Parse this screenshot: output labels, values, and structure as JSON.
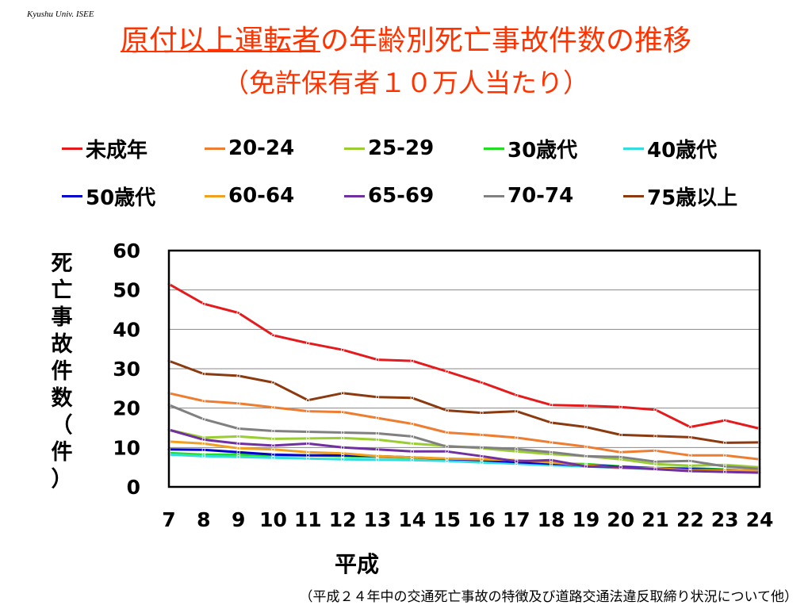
{
  "credit": "Kyushu Univ. ISEE",
  "title": {
    "part1": "原付以上運転者",
    "part2": "の年齢別死亡事故件数の推移",
    "line2": "（免許保有者１０万人当たり）"
  },
  "source": "（平成２４年中の交通死亡事故の特徴及び道路交通法違反取締り状況について他）",
  "colors": {
    "title": "#ff3300",
    "grid": "#888888"
  },
  "chart_data": {
    "type": "line",
    "xlabel": "平成",
    "ylabel": "死亡事故件数（件）",
    "ylabel_chars": [
      "死",
      "亡",
      "事",
      "故",
      "件",
      "数",
      "（",
      "件",
      "）"
    ],
    "x": [
      7,
      8,
      9,
      10,
      11,
      12,
      13,
      14,
      15,
      16,
      17,
      18,
      19,
      20,
      21,
      22,
      23,
      24
    ],
    "ylim": [
      0,
      60
    ],
    "yticks": [
      0,
      10,
      20,
      30,
      40,
      50,
      60
    ],
    "grid": true,
    "legend_position": "top",
    "series": [
      {
        "name": "未成年",
        "color": "#e41a1c",
        "values": [
          51.5,
          46.5,
          44.2,
          38.5,
          36.5,
          34.8,
          32.3,
          32.0,
          29.3,
          26.5,
          23.3,
          20.8,
          20.6,
          20.3,
          19.6,
          15.2,
          16.9,
          14.8
        ]
      },
      {
        "name": "20-24",
        "color": "#ed7d31",
        "values": [
          23.8,
          21.8,
          21.2,
          20.2,
          19.2,
          19.0,
          17.5,
          16.0,
          13.8,
          13.2,
          12.5,
          11.3,
          10.2,
          8.8,
          9.2,
          8.0,
          8.0,
          7.0
        ]
      },
      {
        "name": "25-29",
        "color": "#9acd32",
        "values": [
          14.5,
          12.5,
          12.8,
          12.2,
          12.3,
          12.4,
          12.0,
          11.0,
          10.4,
          9.8,
          9.0,
          8.3,
          7.8,
          7.0,
          5.8,
          5.4,
          5.6,
          5.0
        ]
      },
      {
        "name": "30歳代",
        "color": "#22dd22",
        "values": [
          8.6,
          8.2,
          8.2,
          8.0,
          8.0,
          7.8,
          7.6,
          7.4,
          7.0,
          6.6,
          6.2,
          6.0,
          5.8,
          5.2,
          4.8,
          4.8,
          4.4,
          4.0
        ]
      },
      {
        "name": "40歳代",
        "color": "#33dddd",
        "values": [
          8.2,
          7.8,
          7.6,
          7.4,
          7.2,
          7.0,
          6.9,
          6.8,
          6.6,
          6.2,
          5.9,
          5.5,
          5.2,
          4.8,
          4.6,
          4.4,
          4.2,
          3.9
        ]
      },
      {
        "name": "50歳代",
        "color": "#0000cc",
        "values": [
          9.5,
          9.4,
          8.8,
          8.2,
          8.0,
          8.0,
          7.8,
          7.5,
          7.1,
          6.8,
          6.3,
          5.9,
          5.5,
          5.1,
          4.8,
          4.5,
          4.3,
          3.9
        ]
      },
      {
        "name": "60-64",
        "color": "#f0a020",
        "values": [
          11.5,
          11.0,
          9.8,
          9.5,
          8.8,
          8.5,
          7.8,
          7.5,
          7.2,
          7.0,
          6.8,
          6.2,
          5.5,
          4.8,
          4.8,
          4.2,
          4.2,
          4.2
        ]
      },
      {
        "name": "65-69",
        "color": "#7030a0",
        "values": [
          14.5,
          12.0,
          11.0,
          10.5,
          11.0,
          10.0,
          9.5,
          9.0,
          9.0,
          7.8,
          6.5,
          6.8,
          5.2,
          5.0,
          4.5,
          4.0,
          3.8,
          3.6
        ]
      },
      {
        "name": "70-74",
        "color": "#808080",
        "values": [
          20.8,
          17.2,
          14.8,
          14.2,
          14.0,
          13.8,
          13.6,
          12.8,
          10.2,
          10.0,
          9.6,
          8.8,
          7.8,
          7.6,
          6.4,
          6.6,
          5.2,
          4.6
        ]
      },
      {
        "name": "75歳以上",
        "color": "#8b3a0f",
        "values": [
          32.0,
          28.7,
          28.2,
          26.5,
          22.0,
          23.8,
          22.8,
          22.6,
          19.4,
          18.8,
          19.2,
          16.3,
          15.2,
          13.2,
          12.9,
          12.6,
          11.2,
          11.3
        ]
      }
    ]
  }
}
